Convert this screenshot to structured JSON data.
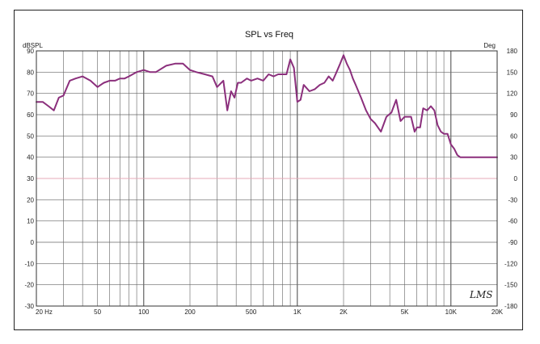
{
  "chart_data": {
    "type": "line",
    "title": "SPL vs Freq",
    "left_unit": "dBSPL",
    "right_unit": "Deg",
    "x_scale": "log",
    "xlim": [
      20,
      20000
    ],
    "ylim": [
      -30,
      90
    ],
    "y2lim": [
      -180,
      180
    ],
    "x_tick_values": [
      20,
      50,
      100,
      200,
      500,
      1000,
      2000,
      5000,
      10000,
      20000
    ],
    "x_tick_labels": [
      "20 Hz",
      "50",
      "100",
      "200",
      "500",
      "1K",
      "2K",
      "5K",
      "10K",
      "20K"
    ],
    "y_ticks": [
      "90",
      "80",
      "70",
      "60",
      "50",
      "40",
      "30",
      "20",
      "10",
      "0",
      "-10",
      "-20",
      "-30"
    ],
    "y2_ticks": [
      "180",
      "150",
      "120",
      "90",
      "60",
      "30",
      "0",
      "-30",
      "-60",
      "-90",
      "-120",
      "-150",
      "-180"
    ],
    "grid": true,
    "reference_line_y": 30,
    "reference_line_color": "#e4a9b8",
    "series_color": "#8b2f7c",
    "logo": "LMS",
    "series": [
      {
        "x": [
          20,
          22,
          24,
          26,
          28,
          30,
          33,
          36,
          40,
          45,
          50,
          55,
          60,
          65,
          70,
          75,
          80,
          90,
          100,
          110,
          120,
          140,
          160,
          180,
          200,
          220,
          250,
          280,
          300,
          330,
          350,
          370,
          390,
          410,
          430,
          470,
          500,
          550,
          600,
          650,
          700,
          750,
          800,
          850,
          900,
          950,
          1000,
          1050,
          1100,
          1200,
          1300,
          1400,
          1500,
          1600,
          1700,
          1800,
          1900,
          2000,
          2100,
          2200,
          2300,
          2400,
          2600,
          2800,
          3000,
          3200,
          3500,
          3800,
          4100,
          4400,
          4700,
          5000,
          5500,
          5800,
          6000,
          6300,
          6600,
          7000,
          7400,
          7800,
          8200,
          8600,
          9000,
          9500,
          10000,
          10500,
          11000,
          11500,
          12000,
          12500,
          13000,
          14000,
          15000,
          16000,
          17000,
          18000,
          19000,
          20000
        ],
        "y": [
          66,
          66,
          64,
          62,
          68,
          69,
          76,
          77,
          78,
          76,
          73,
          75,
          76,
          76,
          77,
          77,
          78,
          80,
          81,
          80,
          80,
          83,
          84,
          84,
          81,
          80,
          79,
          78,
          73,
          76,
          62,
          71,
          68,
          75,
          75,
          77,
          76,
          77,
          76,
          79,
          78,
          79,
          79,
          79,
          86,
          82,
          66,
          67,
          74,
          71,
          72,
          74,
          75,
          78,
          76,
          80,
          84,
          88,
          84,
          81,
          77,
          74,
          68,
          62,
          58,
          56,
          52,
          59,
          61,
          67,
          57,
          59,
          59,
          52,
          54,
          54,
          63,
          62,
          64,
          62,
          55,
          52,
          51,
          51,
          46,
          44,
          41,
          40,
          40,
          40,
          40,
          40,
          40,
          40,
          40,
          40,
          40,
          40
        ]
      }
    ]
  }
}
